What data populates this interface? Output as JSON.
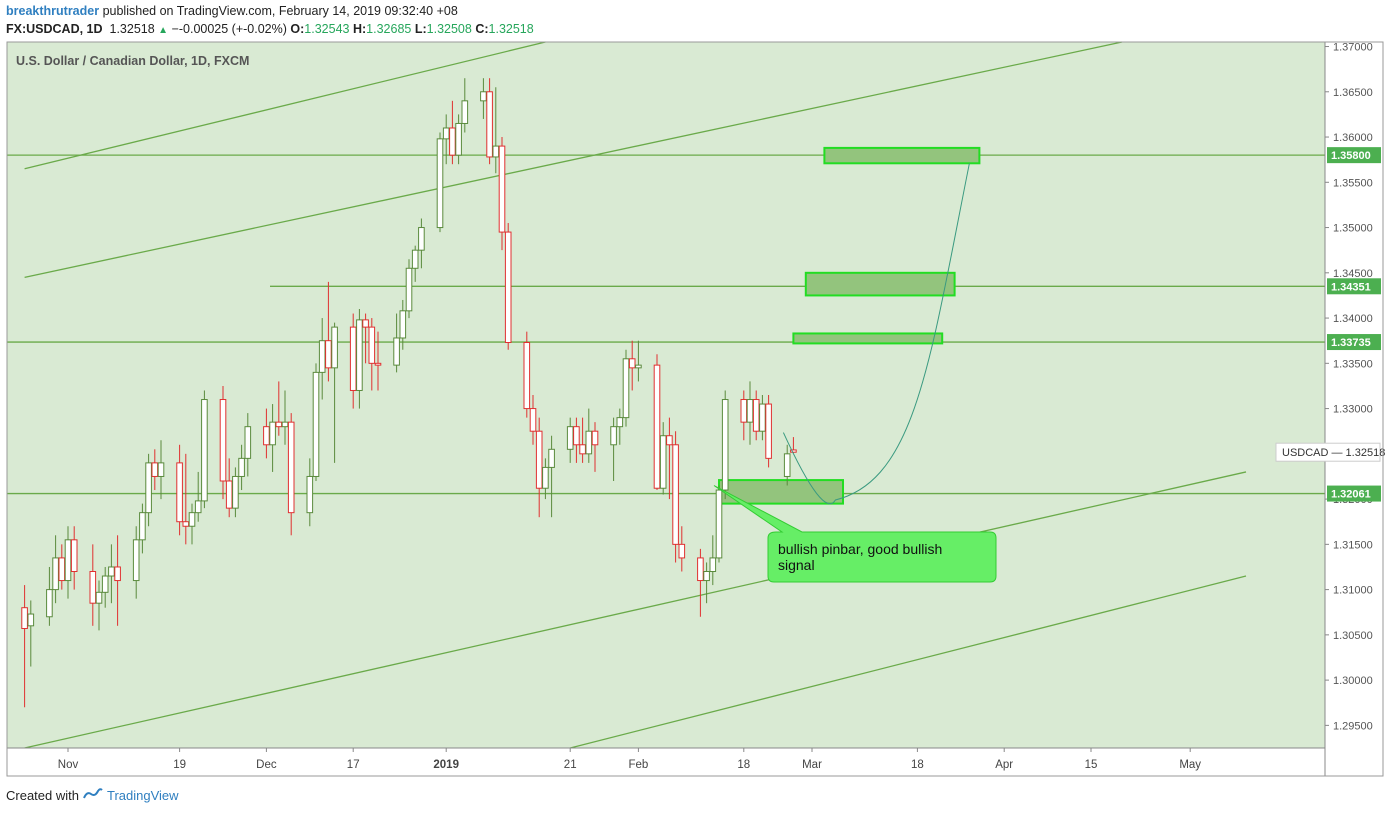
{
  "header": {
    "author": "breakthrutrader",
    "published": "published on TradingView.com, February 14, 2019 09:32:40 +08",
    "symbol_line": "FX:USDCAD, 1D",
    "last": "1.32518",
    "change": "−-0.00025 (+-0.02%)",
    "o_label": "O:",
    "o_value": "1.32543",
    "h_label": "H:",
    "h_value": "1.32685",
    "l_label": "L:",
    "l_value": "1.32508",
    "c_label": "C:",
    "c_value": "1.32518"
  },
  "footer": {
    "prefix": "Created with",
    "brand": "TradingView"
  },
  "colors": {
    "background": "#d9ead3",
    "line": "#6aaa4a",
    "up_candle_border": "#5a8a3c",
    "up_candle_fill": "#ffffff",
    "down_candle": "#e03030",
    "zone_fill": "#93c47d",
    "zone_border": "#22dd22",
    "label_bg": "#4caf50",
    "callout_bg": "#66ee66",
    "curve": "#3a9a80"
  },
  "chart_data": {
    "type": "candlestick",
    "title": "U.S. Dollar / Canadian Dollar, 1D, FXCM",
    "symbol": "USDCAD",
    "current_price": "1.32518",
    "ylim": [
      1.2925,
      1.3705
    ],
    "y_ticks": [
      "1.37000",
      "1.36500",
      "1.36000",
      "1.35500",
      "1.35000",
      "1.34500",
      "1.34000",
      "1.33500",
      "1.33000",
      "1.32500",
      "1.32000",
      "1.31500",
      "1.31000",
      "1.30500",
      "1.30000",
      "1.29500"
    ],
    "x_ticks": [
      {
        "label": "Nov",
        "date": "2018-11-01"
      },
      {
        "label": "19",
        "date": "2018-11-19"
      },
      {
        "label": "Dec",
        "date": "2018-12-03"
      },
      {
        "label": "17",
        "date": "2018-12-17"
      },
      {
        "label": "2019",
        "date": "2019-01-01"
      },
      {
        "label": "21",
        "date": "2019-01-21"
      },
      {
        "label": "Feb",
        "date": "2019-02-01"
      },
      {
        "label": "18",
        "date": "2019-02-18"
      },
      {
        "label": "Mar",
        "date": "2019-03-01"
      },
      {
        "label": "18",
        "date": "2019-03-18"
      },
      {
        "label": "Apr",
        "date": "2019-04-01"
      },
      {
        "label": "15",
        "date": "2019-04-15"
      },
      {
        "label": "May",
        "date": "2019-05-01"
      }
    ],
    "levels": [
      {
        "value": 1.358,
        "label": "1.35800"
      },
      {
        "value": 1.34351,
        "label": "1.34351"
      },
      {
        "value": 1.33735,
        "label": "1.33735"
      },
      {
        "value": 1.32061,
        "label": "1.32061"
      }
    ],
    "target_zones": [
      {
        "date_from": "2019-02-14",
        "date_to": "2019-03-06",
        "price_low": 1.3195,
        "price_high": 1.3221
      },
      {
        "date_from": "2019-02-26",
        "date_to": "2019-03-22",
        "price_low": 1.3372,
        "price_high": 1.3383
      },
      {
        "date_from": "2019-02-28",
        "date_to": "2019-03-24",
        "price_low": 1.3425,
        "price_high": 1.345
      },
      {
        "date_from": "2019-03-03",
        "date_to": "2019-03-28",
        "price_low": 1.3571,
        "price_high": 1.3588
      }
    ],
    "annotation": "bullish pinbar, good bullish signal",
    "candles": [
      {
        "d": "2018-10-25",
        "o": 1.308,
        "h": 1.3105,
        "l": 1.297,
        "c": 1.3057
      },
      {
        "d": "2018-10-26",
        "o": 1.306,
        "h": 1.3088,
        "l": 1.3015,
        "c": 1.3073
      },
      {
        "d": "2018-10-29",
        "o": 1.307,
        "h": 1.3125,
        "l": 1.306,
        "c": 1.31
      },
      {
        "d": "2018-10-30",
        "o": 1.31,
        "h": 1.316,
        "l": 1.3085,
        "c": 1.3135
      },
      {
        "d": "2018-10-31",
        "o": 1.3135,
        "h": 1.315,
        "l": 1.31,
        "c": 1.311
      },
      {
        "d": "2018-11-01",
        "o": 1.311,
        "h": 1.317,
        "l": 1.309,
        "c": 1.3155
      },
      {
        "d": "2018-11-02",
        "o": 1.3155,
        "h": 1.317,
        "l": 1.31,
        "c": 1.312
      },
      {
        "d": "2018-11-05",
        "o": 1.312,
        "h": 1.315,
        "l": 1.306,
        "c": 1.3085
      },
      {
        "d": "2018-11-06",
        "o": 1.3085,
        "h": 1.311,
        "l": 1.3055,
        "c": 1.3097
      },
      {
        "d": "2018-11-07",
        "o": 1.3097,
        "h": 1.3125,
        "l": 1.308,
        "c": 1.3115
      },
      {
        "d": "2018-11-08",
        "o": 1.3115,
        "h": 1.315,
        "l": 1.3085,
        "c": 1.3125
      },
      {
        "d": "2018-11-09",
        "o": 1.3125,
        "h": 1.316,
        "l": 1.306,
        "c": 1.311
      },
      {
        "d": "2018-11-12",
        "o": 1.311,
        "h": 1.317,
        "l": 1.309,
        "c": 1.3155
      },
      {
        "d": "2018-11-13",
        "o": 1.3155,
        "h": 1.3195,
        "l": 1.314,
        "c": 1.3185
      },
      {
        "d": "2018-11-14",
        "o": 1.3185,
        "h": 1.325,
        "l": 1.317,
        "c": 1.324
      },
      {
        "d": "2018-11-15",
        "o": 1.324,
        "h": 1.3255,
        "l": 1.321,
        "c": 1.3225
      },
      {
        "d": "2018-11-16",
        "o": 1.3225,
        "h": 1.3265,
        "l": 1.32,
        "c": 1.324
      },
      {
        "d": "2018-11-19",
        "o": 1.324,
        "h": 1.326,
        "l": 1.316,
        "c": 1.3175
      },
      {
        "d": "2018-11-20",
        "o": 1.3175,
        "h": 1.325,
        "l": 1.315,
        "c": 1.317
      },
      {
        "d": "2018-11-21",
        "o": 1.317,
        "h": 1.3195,
        "l": 1.315,
        "c": 1.3185
      },
      {
        "d": "2018-11-22",
        "o": 1.3185,
        "h": 1.323,
        "l": 1.3175,
        "c": 1.3198
      },
      {
        "d": "2018-11-23",
        "o": 1.3198,
        "h": 1.332,
        "l": 1.319,
        "c": 1.331
      },
      {
        "d": "2018-11-26",
        "o": 1.331,
        "h": 1.3325,
        "l": 1.32,
        "c": 1.322
      },
      {
        "d": "2018-11-27",
        "o": 1.322,
        "h": 1.3245,
        "l": 1.318,
        "c": 1.319
      },
      {
        "d": "2018-11-28",
        "o": 1.319,
        "h": 1.3235,
        "l": 1.318,
        "c": 1.3225
      },
      {
        "d": "2018-11-29",
        "o": 1.3225,
        "h": 1.326,
        "l": 1.321,
        "c": 1.3245
      },
      {
        "d": "2018-11-30",
        "o": 1.3245,
        "h": 1.3295,
        "l": 1.3225,
        "c": 1.328
      },
      {
        "d": "2018-12-03",
        "o": 1.328,
        "h": 1.33,
        "l": 1.3245,
        "c": 1.326
      },
      {
        "d": "2018-12-04",
        "o": 1.326,
        "h": 1.3305,
        "l": 1.323,
        "c": 1.3285
      },
      {
        "d": "2018-12-05",
        "o": 1.3285,
        "h": 1.333,
        "l": 1.327,
        "c": 1.328
      },
      {
        "d": "2018-12-06",
        "o": 1.328,
        "h": 1.332,
        "l": 1.326,
        "c": 1.3285
      },
      {
        "d": "2018-12-07",
        "o": 1.3285,
        "h": 1.3295,
        "l": 1.316,
        "c": 1.3185
      },
      {
        "d": "2018-12-10",
        "o": 1.3185,
        "h": 1.3245,
        "l": 1.317,
        "c": 1.3225
      },
      {
        "d": "2018-12-11",
        "o": 1.3225,
        "h": 1.335,
        "l": 1.322,
        "c": 1.334
      },
      {
        "d": "2018-12-12",
        "o": 1.334,
        "h": 1.34,
        "l": 1.331,
        "c": 1.3375
      },
      {
        "d": "2018-12-13",
        "o": 1.3375,
        "h": 1.344,
        "l": 1.333,
        "c": 1.3345
      },
      {
        "d": "2018-12-14",
        "o": 1.3345,
        "h": 1.3395,
        "l": 1.324,
        "c": 1.339
      },
      {
        "d": "2018-12-17",
        "o": 1.339,
        "h": 1.3405,
        "l": 1.33,
        "c": 1.332
      },
      {
        "d": "2018-12-18",
        "o": 1.332,
        "h": 1.341,
        "l": 1.33,
        "c": 1.3398
      },
      {
        "d": "2018-12-19",
        "o": 1.3398,
        "h": 1.3405,
        "l": 1.335,
        "c": 1.339
      },
      {
        "d": "2018-12-20",
        "o": 1.339,
        "h": 1.34,
        "l": 1.332,
        "c": 1.335
      },
      {
        "d": "2018-12-21",
        "o": 1.335,
        "h": 1.3385,
        "l": 1.332,
        "c": 1.3348
      },
      {
        "d": "2018-12-24",
        "o": 1.3348,
        "h": 1.3405,
        "l": 1.334,
        "c": 1.3378
      },
      {
        "d": "2018-12-25",
        "o": 1.3378,
        "h": 1.342,
        "l": 1.3365,
        "c": 1.3408
      },
      {
        "d": "2018-12-26",
        "o": 1.3408,
        "h": 1.3465,
        "l": 1.34,
        "c": 1.3455
      },
      {
        "d": "2018-12-27",
        "o": 1.3455,
        "h": 1.348,
        "l": 1.344,
        "c": 1.3475
      },
      {
        "d": "2018-12-28",
        "o": 1.3475,
        "h": 1.351,
        "l": 1.3455,
        "c": 1.35
      },
      {
        "d": "2018-12-31",
        "o": 1.35,
        "h": 1.3605,
        "l": 1.3495,
        "c": 1.3598
      },
      {
        "d": "2019-01-01",
        "o": 1.3598,
        "h": 1.3625,
        "l": 1.357,
        "c": 1.361
      },
      {
        "d": "2019-01-02",
        "o": 1.361,
        "h": 1.364,
        "l": 1.357,
        "c": 1.358
      },
      {
        "d": "2019-01-03",
        "o": 1.358,
        "h": 1.3625,
        "l": 1.357,
        "c": 1.3615
      },
      {
        "d": "2019-01-04",
        "o": 1.3615,
        "h": 1.3665,
        "l": 1.3605,
        "c": 1.364
      },
      {
        "d": "2019-01-07",
        "o": 1.364,
        "h": 1.3665,
        "l": 1.362,
        "c": 1.365
      },
      {
        "d": "2019-01-08",
        "o": 1.365,
        "h": 1.3665,
        "l": 1.357,
        "c": 1.3578
      },
      {
        "d": "2019-01-09",
        "o": 1.3578,
        "h": 1.3655,
        "l": 1.356,
        "c": 1.359
      },
      {
        "d": "2019-01-10",
        "o": 1.359,
        "h": 1.36,
        "l": 1.3475,
        "c": 1.3495
      },
      {
        "d": "2019-01-11",
        "o": 1.3495,
        "h": 1.3505,
        "l": 1.3365,
        "c": 1.3373
      },
      {
        "d": "2019-01-14",
        "o": 1.3373,
        "h": 1.3385,
        "l": 1.329,
        "c": 1.33
      },
      {
        "d": "2019-01-15",
        "o": 1.33,
        "h": 1.3315,
        "l": 1.326,
        "c": 1.3275
      },
      {
        "d": "2019-01-16",
        "o": 1.3275,
        "h": 1.329,
        "l": 1.318,
        "c": 1.3212
      },
      {
        "d": "2019-01-17",
        "o": 1.3212,
        "h": 1.3245,
        "l": 1.32,
        "c": 1.3235
      },
      {
        "d": "2019-01-18",
        "o": 1.3235,
        "h": 1.327,
        "l": 1.318,
        "c": 1.3255
      },
      {
        "d": "2019-01-21",
        "o": 1.3255,
        "h": 1.329,
        "l": 1.324,
        "c": 1.328
      },
      {
        "d": "2019-01-22",
        "o": 1.328,
        "h": 1.329,
        "l": 1.324,
        "c": 1.326
      },
      {
        "d": "2019-01-23",
        "o": 1.326,
        "h": 1.329,
        "l": 1.324,
        "c": 1.325
      },
      {
        "d": "2019-01-24",
        "o": 1.325,
        "h": 1.33,
        "l": 1.324,
        "c": 1.3275
      },
      {
        "d": "2019-01-25",
        "o": 1.3275,
        "h": 1.3285,
        "l": 1.323,
        "c": 1.326
      },
      {
        "d": "2019-01-28",
        "o": 1.326,
        "h": 1.329,
        "l": 1.322,
        "c": 1.328
      },
      {
        "d": "2019-01-29",
        "o": 1.328,
        "h": 1.33,
        "l": 1.326,
        "c": 1.329
      },
      {
        "d": "2019-01-30",
        "o": 1.329,
        "h": 1.3365,
        "l": 1.328,
        "c": 1.3355
      },
      {
        "d": "2019-01-31",
        "o": 1.3355,
        "h": 1.3375,
        "l": 1.332,
        "c": 1.3345
      },
      {
        "d": "2019-02-01",
        "o": 1.3345,
        "h": 1.3375,
        "l": 1.333,
        "c": 1.3348
      },
      {
        "d": "2019-02-04",
        "o": 1.3348,
        "h": 1.336,
        "l": 1.321,
        "c": 1.3212
      },
      {
        "d": "2019-02-05",
        "o": 1.3212,
        "h": 1.3285,
        "l": 1.3205,
        "c": 1.327
      },
      {
        "d": "2019-02-06",
        "o": 1.327,
        "h": 1.329,
        "l": 1.32,
        "c": 1.326
      },
      {
        "d": "2019-02-07",
        "o": 1.326,
        "h": 1.3275,
        "l": 1.313,
        "c": 1.315
      },
      {
        "d": "2019-02-08",
        "o": 1.315,
        "h": 1.317,
        "l": 1.312,
        "c": 1.3135
      },
      {
        "d": "2019-02-11",
        "o": 1.3135,
        "h": 1.3145,
        "l": 1.307,
        "c": 1.311
      },
      {
        "d": "2019-02-12",
        "o": 1.311,
        "h": 1.313,
        "l": 1.3085,
        "c": 1.312
      },
      {
        "d": "2019-02-13",
        "o": 1.312,
        "h": 1.316,
        "l": 1.3105,
        "c": 1.3135
      },
      {
        "d": "2019-02-14",
        "o": 1.3135,
        "h": 1.3215,
        "l": 1.313,
        "c": 1.321
      },
      {
        "d": "2019-02-15",
        "o": 1.321,
        "h": 1.332,
        "l": 1.32,
        "c": 1.331
      },
      {
        "d": "2019-02-18",
        "o": 1.331,
        "h": 1.332,
        "l": 1.3265,
        "c": 1.3285
      },
      {
        "d": "2019-02-19",
        "o": 1.3285,
        "h": 1.333,
        "l": 1.326,
        "c": 1.331
      },
      {
        "d": "2019-02-20",
        "o": 1.331,
        "h": 1.332,
        "l": 1.3265,
        "c": 1.3275
      },
      {
        "d": "2019-02-21",
        "o": 1.3275,
        "h": 1.3315,
        "l": 1.3265,
        "c": 1.3305
      },
      {
        "d": "2019-02-22",
        "o": 1.3305,
        "h": 1.3315,
        "l": 1.3235,
        "c": 1.3245
      },
      {
        "d": "2019-02-25",
        "o": 1.3225,
        "h": 1.326,
        "l": 1.3215,
        "c": 1.325
      },
      {
        "d": "2019-02-26",
        "o": 1.32543,
        "h": 1.32685,
        "l": 1.32508,
        "c": 1.32518
      }
    ]
  }
}
